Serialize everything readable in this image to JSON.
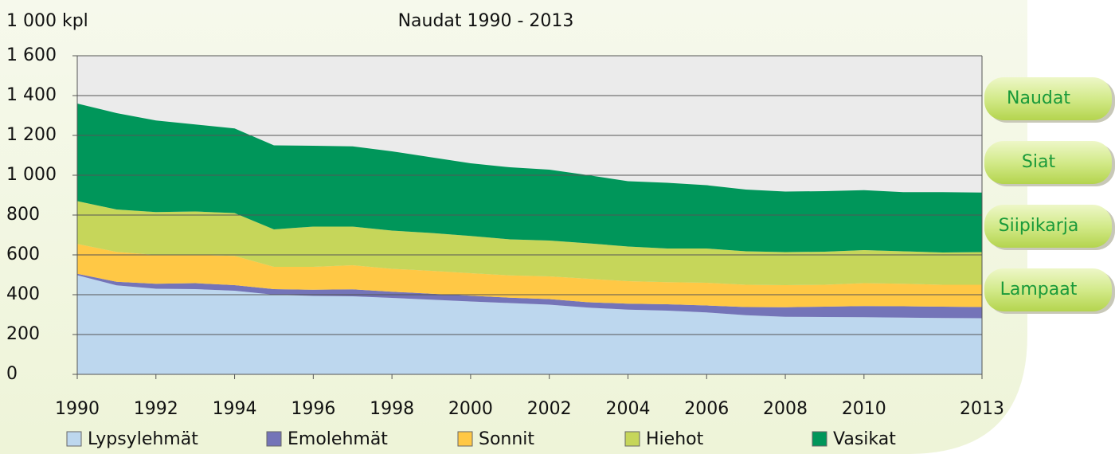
{
  "chart_data": {
    "type": "stacked_area",
    "title": "Naudat 1990 - 2013",
    "ylabel": "1 000 kpl",
    "x": [
      1990,
      1991,
      1992,
      1993,
      1994,
      1995,
      1996,
      1997,
      1998,
      1999,
      2000,
      2001,
      2002,
      2003,
      2004,
      2005,
      2006,
      2007,
      2008,
      2009,
      2010,
      2011,
      2012,
      2013
    ],
    "xlim": [
      1990,
      2013
    ],
    "xticks": [
      1990,
      1992,
      1994,
      1996,
      1998,
      2000,
      2002,
      2004,
      2006,
      2008,
      2010,
      2013
    ],
    "ylim": [
      0,
      1600
    ],
    "yticks": [
      0,
      200,
      400,
      600,
      800,
      {
        "value": 1000,
        "label": "1 000"
      },
      {
        "value": 1200,
        "label": "1 200"
      },
      {
        "value": 1400,
        "label": "1 400"
      },
      {
        "value": 1600,
        "label": "1 600"
      }
    ],
    "grid": true,
    "legend": "bottom",
    "series": [
      {
        "name": "Lypsylehmät",
        "color": "#bdd7ee",
        "values": [
          498,
          447,
          430,
          428,
          420,
          400,
          394,
          392,
          384,
          375,
          366,
          358,
          350,
          335,
          325,
          320,
          311,
          297,
          289,
          288,
          287,
          285,
          283,
          282
        ]
      },
      {
        "name": "Emolehmät",
        "color": "#7474b8",
        "values": [
          7,
          18,
          25,
          30,
          28,
          28,
          31,
          35,
          31,
          30,
          29,
          27,
          28,
          27,
          30,
          32,
          35,
          41,
          48,
          52,
          56,
          57,
          57,
          56
        ]
      },
      {
        "name": "Sonnit",
        "color": "#ffc845",
        "values": [
          150,
          150,
          145,
          142,
          147,
          112,
          115,
          121,
          115,
          115,
          113,
          112,
          114,
          118,
          113,
          111,
          114,
          112,
          111,
          110,
          115,
          113,
          110,
          112
        ]
      },
      {
        "name": "Hiehot",
        "color": "#c6d65a",
        "values": [
          215,
          213,
          215,
          218,
          215,
          188,
          202,
          194,
          192,
          190,
          187,
          181,
          180,
          178,
          174,
          169,
          172,
          168,
          166,
          166,
          166,
          163,
          162,
          164
        ]
      },
      {
        "name": "Vasikat",
        "color": "#00965a",
        "values": [
          490,
          484,
          460,
          437,
          425,
          422,
          406,
          403,
          398,
          380,
          365,
          362,
          356,
          342,
          328,
          330,
          318,
          310,
          304,
          304,
          301,
          297,
          303,
          299
        ]
      }
    ]
  },
  "buttons": [
    "Naudat",
    "Siat",
    "Siipikarja",
    "Lampaat"
  ]
}
